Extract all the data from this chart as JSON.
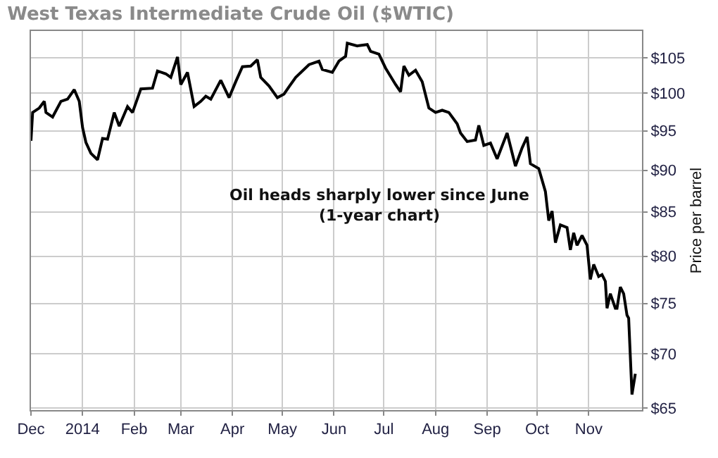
{
  "chart_data": {
    "type": "line",
    "title": "West Texas Intermediate Crude Oil ($WTIC)",
    "ylabel": "Price per barrel",
    "annotations": [
      "Oil heads sharply lower since June\n(1-year chart)"
    ],
    "log": "y",
    "grid": true,
    "marker": "none",
    "line_style": "solid",
    "xlim": [
      "2013-12-01",
      "2014-12-03"
    ],
    "xticks": [
      {
        "value": "2013-12-01",
        "label": "Dec"
      },
      {
        "value": "2014-01-01",
        "label": "2014"
      },
      {
        "value": "2014-02-01",
        "label": "Feb"
      },
      {
        "value": "2014-03-01",
        "label": "Mar"
      },
      {
        "value": "2014-04-01",
        "label": "Apr"
      },
      {
        "value": "2014-05-01",
        "label": "May"
      },
      {
        "value": "2014-06-01",
        "label": "Jun"
      },
      {
        "value": "2014-07-01",
        "label": "Jul"
      },
      {
        "value": "2014-08-01",
        "label": "Aug"
      },
      {
        "value": "2014-09-01",
        "label": "Sep"
      },
      {
        "value": "2014-10-01",
        "label": "Oct"
      },
      {
        "value": "2014-11-01",
        "label": "Nov"
      }
    ],
    "ylim": [
      64.8,
      108.9
    ],
    "yticks": [
      {
        "value": 65,
        "label": "$65"
      },
      {
        "value": 70,
        "label": "$70"
      },
      {
        "value": 75,
        "label": "$75"
      },
      {
        "value": 80,
        "label": "$80"
      },
      {
        "value": 85,
        "label": "$85"
      },
      {
        "value": 90,
        "label": "$90"
      },
      {
        "value": 95,
        "label": "$95"
      },
      {
        "value": 100,
        "label": "$100"
      },
      {
        "value": 105,
        "label": "$105"
      }
    ],
    "x": [
      "2013-12-01",
      "2013-12-02",
      "2013-12-06",
      "2013-12-09",
      "2013-12-10",
      "2013-12-14",
      "2013-12-19",
      "2013-12-23",
      "2013-12-27",
      "2013-12-30",
      "2014-01-01",
      "2014-01-03",
      "2014-01-06",
      "2014-01-10",
      "2014-01-13",
      "2014-01-16",
      "2014-01-20",
      "2014-01-23",
      "2014-01-28",
      "2014-01-31",
      "2014-02-05",
      "2014-02-12",
      "2014-02-15",
      "2014-02-20",
      "2014-02-23",
      "2014-02-27",
      "2014-03-01",
      "2014-03-05",
      "2014-03-09",
      "2014-03-13",
      "2014-03-16",
      "2014-03-19",
      "2014-03-25",
      "2014-03-30",
      "2014-04-03",
      "2014-04-07",
      "2014-04-12",
      "2014-04-16",
      "2014-04-18",
      "2014-04-23",
      "2014-04-28",
      "2014-05-02",
      "2014-05-05",
      "2014-05-09",
      "2014-05-17",
      "2014-05-23",
      "2014-05-25",
      "2014-05-31",
      "2014-06-04",
      "2014-06-08",
      "2014-06-09",
      "2014-06-15",
      "2014-06-21",
      "2014-06-23",
      "2014-06-28",
      "2014-07-02",
      "2014-07-08",
      "2014-07-11",
      "2014-07-13",
      "2014-07-16",
      "2014-07-20",
      "2014-07-24",
      "2014-07-28",
      "2014-08-01",
      "2014-08-05",
      "2014-08-09",
      "2014-08-14",
      "2014-08-16",
      "2014-08-20",
      "2014-08-25",
      "2014-08-27",
      "2014-08-30",
      "2014-09-03",
      "2014-09-07",
      "2014-09-13",
      "2014-09-18",
      "2014-09-22",
      "2014-09-25",
      "2014-09-27",
      "2014-10-02",
      "2014-10-06",
      "2014-10-08",
      "2014-10-10",
      "2014-10-12",
      "2014-10-15",
      "2014-10-19",
      "2014-10-21",
      "2014-10-23",
      "2014-10-25",
      "2014-10-28",
      "2014-10-31",
      "2014-11-02",
      "2014-11-04",
      "2014-11-07",
      "2014-11-09",
      "2014-11-11",
      "2014-11-12",
      "2014-11-14",
      "2014-11-17",
      "2014-11-18",
      "2014-11-20",
      "2014-11-22",
      "2014-11-24",
      "2014-11-25",
      "2014-11-27",
      "2014-11-29"
    ],
    "series": [
      {
        "color": "#000000",
        "values": [
          93.7,
          97.4,
          98.0,
          98.9,
          97.4,
          96.8,
          98.9,
          99.2,
          100.5,
          98.9,
          95.4,
          93.5,
          92.1,
          91.3,
          94.0,
          93.9,
          97.4,
          95.6,
          98.2,
          97.4,
          100.6,
          100.7,
          103.1,
          102.7,
          102.2,
          105.1,
          101.2,
          102.9,
          98.2,
          98.9,
          99.6,
          99.2,
          101.8,
          99.4,
          101.6,
          103.7,
          103.8,
          104.7,
          102.2,
          101.0,
          99.4,
          99.9,
          100.9,
          102.2,
          104.0,
          104.5,
          103.3,
          102.9,
          104.5,
          105.2,
          107.1,
          106.7,
          106.9,
          105.9,
          105.5,
          103.5,
          101.2,
          100.2,
          103.8,
          102.5,
          103.2,
          101.6,
          98.0,
          97.4,
          97.7,
          97.4,
          95.9,
          94.7,
          93.6,
          93.8,
          95.7,
          93.1,
          93.4,
          91.4,
          94.7,
          90.5,
          92.8,
          94.2,
          90.8,
          90.2,
          87.4,
          84.0,
          85.1,
          81.5,
          83.5,
          83.2,
          80.7,
          82.6,
          81.2,
          82.3,
          81.2,
          77.5,
          79.1,
          77.8,
          78.0,
          77.3,
          74.5,
          76.0,
          74.5,
          74.5,
          76.7,
          76.0,
          73.8,
          73.5,
          66.2,
          68.1
        ]
      }
    ]
  }
}
